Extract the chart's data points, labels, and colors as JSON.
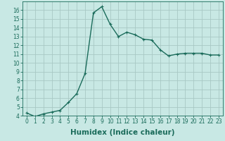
{
  "title": "",
  "xlabel": "Humidex (Indice chaleur)",
  "ylabel": "",
  "x_values": [
    0,
    1,
    2,
    3,
    4,
    5,
    6,
    7,
    8,
    9,
    10,
    11,
    12,
    13,
    14,
    15,
    16,
    17,
    18,
    19,
    20,
    21,
    22,
    23
  ],
  "y_values": [
    4.3,
    3.9,
    4.2,
    4.4,
    4.6,
    5.5,
    6.5,
    8.8,
    15.7,
    16.4,
    14.4,
    13.0,
    13.5,
    13.2,
    12.7,
    12.6,
    11.5,
    10.8,
    11.0,
    11.1,
    11.1,
    11.1,
    10.9,
    10.9
  ],
  "line_color": "#1a6b5a",
  "marker": "+",
  "marker_size": 3,
  "marker_edge_width": 0.8,
  "background_color": "#c8e8e4",
  "grid_color": "#a8c8c4",
  "ylim": [
    4,
    17
  ],
  "xlim": [
    -0.5,
    23.5
  ],
  "yticks": [
    4,
    5,
    6,
    7,
    8,
    9,
    10,
    11,
    12,
    13,
    14,
    15,
    16
  ],
  "xticks": [
    0,
    1,
    2,
    3,
    4,
    5,
    6,
    7,
    8,
    9,
    10,
    11,
    12,
    13,
    14,
    15,
    16,
    17,
    18,
    19,
    20,
    21,
    22,
    23
  ],
  "tick_fontsize": 5.5,
  "xlabel_fontsize": 7.5,
  "line_width": 1.0
}
